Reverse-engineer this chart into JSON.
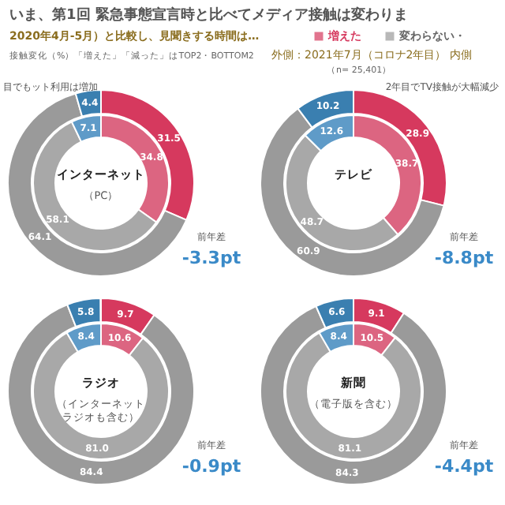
{
  "chart_data": [
    {
      "type": "other",
      "title": "いま、第1回 緊急事態宣言時と比べてメディア接触は変わりま",
      "subtitle": "2020年4月-5月）と比較し、見聞きする時間は…",
      "annotations": [
        "接触変化（%）「増えた」「減った」はTOP2・BOTTOM2",
        "外側：2021年7月（コロナ2年目） 内側",
        "（n= 25,401）"
      ]
    },
    {
      "type": "donut",
      "title": "インターネット",
      "subtitle": "（PC）",
      "categories": [
        "増えた",
        "変わらない・",
        null
      ],
      "data_labels": true,
      "legend": "top right",
      "series": [
        {
          "values": [
            31.5,
            64.1,
            4.4
          ],
          "colors": [
            "#d6395e",
            "#9a9a9a",
            "#3a7fb0"
          ]
        },
        {
          "values": [
            34.8,
            58.1,
            7.1
          ],
          "colors": [
            "#dc6581",
            "#a8a8a8",
            "#5f9bc8"
          ]
        }
      ],
      "annotations": [
        "前年差",
        "-3.3pt",
        "目でもット利用は増加"
      ]
    },
    {
      "type": "donut",
      "title": "テレビ",
      "categories": [
        null,
        null,
        null
      ],
      "data_labels": true,
      "series": [
        {
          "values": [
            28.9,
            60.9,
            10.2
          ],
          "colors": [
            "#d6395e",
            "#9a9a9a",
            "#3a7fb0"
          ]
        },
        {
          "values": [
            38.7,
            48.7,
            12.6
          ],
          "colors": [
            "#dc6581",
            "#a8a8a8",
            "#5f9bc8"
          ]
        }
      ],
      "annotations": [
        "前年差",
        "-8.8pt",
        "2年目でTV接触が大幅減少"
      ]
    },
    {
      "type": "donut",
      "title": "ラジオ",
      "subtitle": "（インターネットラジオも含む）",
      "categories": [
        null,
        null,
        null
      ],
      "data_labels": true,
      "series": [
        {
          "values": [
            9.7,
            84.4,
            5.8
          ],
          "colors": [
            "#d6395e",
            "#9a9a9a",
            "#3a7fb0"
          ]
        },
        {
          "values": [
            10.6,
            81.0,
            8.4
          ],
          "value_labels": [
            "10.6",
            "81.0",
            "8.4"
          ],
          "colors": [
            "#dc6581",
            "#a8a8a8",
            "#5f9bc8"
          ]
        }
      ],
      "annotations": [
        "前年差",
        "-0.9pt"
      ]
    },
    {
      "type": "donut",
      "title": "新聞",
      "subtitle": "（電子版を含む）",
      "categories": [
        null,
        null,
        null
      ],
      "data_labels": true,
      "series": [
        {
          "values": [
            9.1,
            84.3,
            6.6
          ],
          "colors": [
            "#d6395e",
            "#9a9a9a",
            "#3a7fb0"
          ]
        },
        {
          "values": [
            10.5,
            81.1,
            8.4
          ],
          "colors": [
            "#dc6581",
            "#a8a8a8",
            "#5f9bc8"
          ]
        }
      ],
      "annotations": [
        "前年差",
        "-4.4pt"
      ]
    }
  ]
}
